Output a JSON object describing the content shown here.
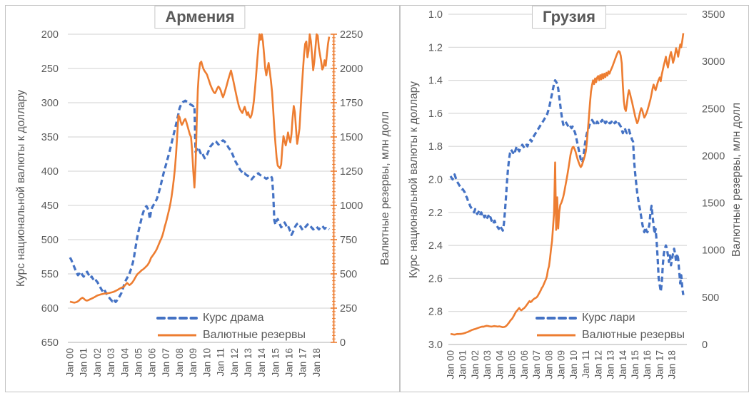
{
  "colors": {
    "rate_line": "#4472C4",
    "reserves_line": "#ED7D31",
    "gridline": "#D9D9D9",
    "baseline": "#BFBFBF",
    "tick_text": "#595959",
    "axis_title_text": "#595959",
    "title_text": "#595959",
    "panel_border": "#C3C3C3"
  },
  "chart_data": [
    {
      "type": "line",
      "title": "Армения",
      "y_left_title": "Курс национальной валюты к доллару",
      "y_right_title": "Валютные резервы, млн долл",
      "y_left_axis": {
        "min": 200,
        "max": 650,
        "inverted": true,
        "tick_labels": [
          "200",
          "250",
          "300",
          "350",
          "400",
          "450",
          "500",
          "550",
          "600",
          "650"
        ]
      },
      "y_right_axis": {
        "min": 0,
        "max": 2250,
        "colored_axis_line": true,
        "tick_labels": [
          "2250",
          "2000",
          "1750",
          "1500",
          "1250",
          "1000",
          "750",
          "500",
          "250",
          "0"
        ]
      },
      "x_tick_labels": [
        "Jan 00",
        "Jan 01",
        "Jan 02",
        "Jan 03",
        "Jan 04",
        "Jan 05",
        "Jan 06",
        "Jan 07",
        "Jan 08",
        "Jan 09",
        "Jan 10",
        "Jan 11",
        "Jan 12",
        "Jan 13",
        "Jan 14",
        "Jan 15",
        "Jan 16",
        "Jan 17",
        "Jan 18"
      ],
      "legend": [
        {
          "label": "Курс драма",
          "color": "#4472C4",
          "dashed": true
        },
        {
          "label": "Валютные резервы",
          "color": "#ED7D31",
          "dashed": false
        }
      ],
      "series": [
        {
          "name": "Курс драма",
          "axis": "left",
          "color": "#4472C4",
          "dashed": true,
          "monthly_values": [
            526,
            529,
            533,
            537,
            541,
            545,
            549,
            552,
            550,
            547,
            549,
            552,
            554,
            551,
            548,
            547,
            550,
            553,
            556,
            554,
            557,
            559,
            557,
            560,
            562,
            565,
            568,
            571,
            574,
            576,
            573,
            576,
            579,
            582,
            584,
            586,
            588,
            590,
            587,
            589,
            591,
            589,
            586,
            584,
            581,
            578,
            573,
            568,
            563,
            559,
            556,
            553,
            550,
            545,
            540,
            534,
            526,
            516,
            506,
            496,
            488,
            481,
            474,
            467,
            461,
            456,
            453,
            451,
            454,
            459,
            470,
            458,
            453,
            450,
            447,
            444,
            441,
            436,
            430,
            424,
            417,
            410,
            403,
            397,
            391,
            385,
            379,
            373,
            366,
            359,
            352,
            345,
            338,
            331,
            324,
            316,
            308,
            304,
            301,
            299,
            298,
            297,
            298,
            299,
            301,
            302,
            303,
            304,
            305,
            304,
            372,
            369,
            365,
            368,
            372,
            376,
            374,
            378,
            381,
            378,
            376,
            372,
            368,
            364,
            362,
            360,
            358,
            356,
            357,
            359,
            361,
            360,
            358,
            356,
            355,
            356,
            358,
            360,
            363,
            366,
            368,
            370,
            374,
            378,
            382,
            386,
            389,
            392,
            395,
            398,
            400,
            402,
            404,
            403,
            405,
            406,
            407,
            409,
            411,
            412,
            410,
            408,
            406,
            405,
            404,
            403,
            405,
            406,
            407,
            408,
            409,
            410,
            411,
            410,
            409,
            408,
            407,
            410,
            432,
            472,
            478,
            472,
            470,
            474,
            478,
            482,
            480,
            477,
            475,
            478,
            482,
            480,
            484,
            488,
            493,
            490,
            486,
            482,
            479,
            477,
            476,
            478,
            481,
            484,
            486,
            484,
            482,
            480,
            478,
            477,
            479,
            481,
            483,
            485,
            484,
            482,
            481,
            483,
            485,
            483,
            481,
            480,
            482,
            484,
            483,
            485,
            484,
            485
          ]
        },
        {
          "name": "Валютные резервы",
          "axis": "right",
          "color": "#ED7D31",
          "dashed": false,
          "monthly_values": [
            298,
            295,
            293,
            291,
            290,
            292,
            295,
            300,
            306,
            315,
            322,
            326,
            320,
            312,
            306,
            305,
            308,
            312,
            316,
            320,
            324,
            328,
            333,
            338,
            342,
            345,
            348,
            350,
            352,
            354,
            356,
            357,
            358,
            359,
            360,
            362,
            364,
            366,
            369,
            372,
            376,
            380,
            385,
            390,
            395,
            399,
            402,
            405,
            415,
            425,
            434,
            426,
            418,
            424,
            432,
            442,
            455,
            470,
            484,
            497,
            505,
            512,
            520,
            528,
            533,
            540,
            548,
            556,
            565,
            578,
            595,
            617,
            628,
            640,
            652,
            665,
            680,
            700,
            720,
            740,
            758,
            780,
            810,
            845,
            873,
            905,
            940,
            975,
            1015,
            1065,
            1125,
            1195,
            1275,
            1385,
            1520,
            1658,
            1645,
            1610,
            1588,
            1602,
            1622,
            1632,
            1608,
            1578,
            1548,
            1518,
            1501,
            1400,
            1250,
            1130,
            1300,
            1600,
            1850,
            1980,
            2040,
            2050,
            2020,
            1995,
            1980,
            1968,
            1955,
            1930,
            1905,
            1880,
            1860,
            1842,
            1826,
            1820,
            1835,
            1855,
            1868,
            1858,
            1840,
            1812,
            1790,
            1812,
            1840,
            1868,
            1900,
            1930,
            1958,
            1985,
            1950,
            1912,
            1872,
            1832,
            1792,
            1755,
            1722,
            1700,
            1686,
            1675,
            1700,
            1720,
            1690,
            1660,
            1680,
            1652,
            1640,
            1660,
            1700,
            1760,
            1850,
            1950,
            2060,
            2160,
            2250,
            2210,
            2250,
            2195,
            2100,
            2000,
            1950,
            2000,
            2040,
            1980,
            1912,
            1830,
            1700,
            1560,
            1450,
            1350,
            1290,
            1280,
            1272,
            1300,
            1420,
            1506,
            1470,
            1438,
            1480,
            1533,
            1490,
            1460,
            1520,
            1640,
            1726,
            1680,
            1559,
            1450,
            1500,
            1560,
            1700,
            1850,
            1980,
            2100,
            2180,
            2197,
            2082,
            2130,
            2250,
            2200,
            2100,
            1987,
            2050,
            2150,
            2250,
            2240,
            2150,
            2100,
            2050,
            1992,
            2010,
            2060,
            2020,
            2100,
            2180,
            2232
          ]
        }
      ]
    },
    {
      "type": "line",
      "title": "Грузия",
      "y_left_title": "Курс национальной валюты к доллару",
      "y_right_title": "Валютные резервы, млн долл",
      "y_left_axis": {
        "min": 1.0,
        "max": 3.0,
        "inverted": true,
        "tick_labels": [
          "1.0",
          "1.2",
          "1.4",
          "1.6",
          "1.8",
          "2.0",
          "2.2",
          "2.4",
          "2.6",
          "2.8",
          "3.0"
        ]
      },
      "y_right_axis": {
        "min": 0,
        "max": 3500,
        "colored_axis_line": false,
        "tick_labels": [
          "3500",
          "3000",
          "2500",
          "2000",
          "1500",
          "1000",
          "500",
          "0"
        ]
      },
      "x_tick_labels": [
        "Jan 00",
        "Jan 01",
        "Jan 02",
        "Jan 03",
        "Jan 04",
        "Jan 05",
        "Jan 06",
        "Jan 07",
        "Jan 08",
        "Jan 09",
        "Jan 10",
        "Jan 11",
        "Jan 12",
        "Jan 13",
        "Jan 14",
        "Jan 15",
        "Jan 16",
        "Jan 17",
        "Jan 18"
      ],
      "legend": [
        {
          "label": "Курс лари",
          "color": "#4472C4",
          "dashed": true
        },
        {
          "label": "Валютные резервы",
          "color": "#ED7D31",
          "dashed": false
        }
      ],
      "series": [
        {
          "name": "Курс лари",
          "axis": "left",
          "color": "#4472C4",
          "dashed": true,
          "monthly_values": [
            1.98,
            1.99,
            2.0,
            1.98,
            1.97,
            1.99,
            2.01,
            2.02,
            2.03,
            2.04,
            2.05,
            2.06,
            2.06,
            2.07,
            2.08,
            2.1,
            2.11,
            2.13,
            2.14,
            2.16,
            2.17,
            2.18,
            2.19,
            2.2,
            2.18,
            2.2,
            2.21,
            2.2,
            2.19,
            2.21,
            2.2,
            2.22,
            2.21,
            2.23,
            2.22,
            2.24,
            2.23,
            2.22,
            2.24,
            2.23,
            2.25,
            2.24,
            2.26,
            2.25,
            2.27,
            2.28,
            2.29,
            2.3,
            2.28,
            2.29,
            2.3,
            2.31,
            2.27,
            2.2,
            2.11,
            2.02,
            1.94,
            1.88,
            1.84,
            1.82,
            1.83,
            1.84,
            1.82,
            1.83,
            1.81,
            1.8,
            1.82,
            1.83,
            1.81,
            1.8,
            1.79,
            1.8,
            1.81,
            1.8,
            1.79,
            1.8,
            1.78,
            1.77,
            1.76,
            1.77,
            1.75,
            1.74,
            1.73,
            1.72,
            1.71,
            1.7,
            1.69,
            1.68,
            1.67,
            1.66,
            1.65,
            1.64,
            1.63,
            1.62,
            1.61,
            1.59,
            1.57,
            1.54,
            1.51,
            1.48,
            1.45,
            1.42,
            1.4,
            1.41,
            1.42,
            1.45,
            1.5,
            1.55,
            1.6,
            1.64,
            1.67,
            1.66,
            1.65,
            1.66,
            1.67,
            1.68,
            1.67,
            1.68,
            1.69,
            1.68,
            1.7,
            1.71,
            1.73,
            1.76,
            1.79,
            1.82,
            1.85,
            1.88,
            1.9,
            1.89,
            1.84,
            1.79,
            1.75,
            1.72,
            1.7,
            1.68,
            1.66,
            1.65,
            1.64,
            1.65,
            1.66,
            1.65,
            1.66,
            1.65,
            1.66,
            1.65,
            1.64,
            1.65,
            1.64,
            1.66,
            1.65,
            1.66,
            1.65,
            1.66,
            1.65,
            1.66,
            1.66,
            1.65,
            1.66,
            1.65,
            1.66,
            1.65,
            1.66,
            1.67,
            1.66,
            1.67,
            1.68,
            1.7,
            1.72,
            1.7,
            1.69,
            1.71,
            1.72,
            1.71,
            1.7,
            1.72,
            1.74,
            1.76,
            1.77,
            1.89,
            1.96,
            2.02,
            2.08,
            2.12,
            2.16,
            2.19,
            2.23,
            2.27,
            2.3,
            2.32,
            2.29,
            2.31,
            2.32,
            2.3,
            2.27,
            2.2,
            2.16,
            2.22,
            2.28,
            2.33,
            2.3,
            2.38,
            2.48,
            2.6,
            2.64,
            2.68,
            2.63,
            2.52,
            2.45,
            2.42,
            2.4,
            2.42,
            2.46,
            2.5,
            2.46,
            2.52,
            2.48,
            2.45,
            2.42,
            2.45,
            2.5,
            2.45,
            2.48,
            2.56,
            2.63,
            2.58,
            2.66,
            2.7
          ]
        },
        {
          "name": "Валютные резервы",
          "axis": "right",
          "color": "#ED7D31",
          "dashed": false,
          "monthly_values": [
            112,
            110,
            108,
            106,
            105,
            107,
            110,
            112,
            111,
            113,
            112,
            114,
            116,
            119,
            122,
            126,
            130,
            134,
            139,
            144,
            150,
            155,
            158,
            162,
            165,
            168,
            172,
            176,
            180,
            184,
            187,
            190,
            188,
            192,
            195,
            198,
            197,
            195,
            193,
            191,
            190,
            192,
            194,
            195,
            193,
            192,
            190,
            192,
            192,
            189,
            186,
            184,
            185,
            188,
            195,
            205,
            218,
            232,
            248,
            262,
            273,
            290,
            310,
            330,
            349,
            360,
            375,
            387,
            370,
            362,
            370,
            380,
            387,
            400,
            415,
            430,
            445,
            460,
            448,
            456,
            470,
            480,
            488,
            494,
            500,
            515,
            535,
            554,
            575,
            600,
            615,
            640,
            665,
            691,
            725,
            790,
            830,
            910,
            1010,
            1100,
            1250,
            1400,
            1930,
            1215,
            1560,
            1230,
            1400,
            1480,
            1500,
            1530,
            1570,
            1620,
            1680,
            1740,
            1800,
            1870,
            1940,
            2010,
            2060,
            2090,
            2095,
            2070,
            2040,
            2000,
            1960,
            1930,
            1900,
            1880,
            1895,
            1930,
            1965,
            2000,
            2050,
            2150,
            2280,
            2420,
            2560,
            2680,
            2750,
            2800,
            2760,
            2820,
            2780,
            2830,
            2845,
            2800,
            2855,
            2810,
            2865,
            2820,
            2870,
            2835,
            2880,
            2850,
            2895,
            2870,
            2900,
            2925,
            2950,
            2980,
            3010,
            3040,
            3070,
            3095,
            3110,
            3100,
            3060,
            2980,
            2750,
            2580,
            2500,
            2475,
            2550,
            2640,
            2695,
            2660,
            2610,
            2570,
            2520,
            2470,
            2420,
            2380,
            2345,
            2370,
            2420,
            2470,
            2505,
            2480,
            2440,
            2405,
            2425,
            2450,
            2480,
            2520,
            2560,
            2600,
            2655,
            2710,
            2755,
            2720,
            2695,
            2735,
            2775,
            2805,
            2830,
            2790,
            2860,
            2910,
            2960,
            3000,
            3050,
            2980,
            2935,
            3000,
            3060,
            3100,
            3050,
            2985,
            3025,
            3080,
            3140,
            3100,
            3050,
            3120,
            3180,
            3150,
            3220,
            3300
          ]
        }
      ]
    }
  ]
}
